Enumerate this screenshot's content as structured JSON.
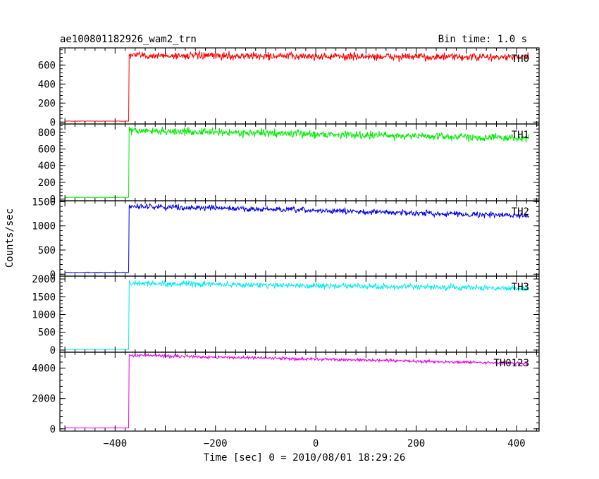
{
  "chart_data": {
    "type": "line",
    "title": "ae100801182926_wam2_trn",
    "subtitle": "Bin time: 1.0 s",
    "xlabel": "Time [sec] 0 = 2010/08/01 18:29:26",
    "ylabel": "Counts/sec",
    "xlim": [
      -510,
      445
    ],
    "x_ticks": [
      "−400",
      "−200",
      "0",
      "200",
      "400"
    ],
    "x_tick_values": [
      -400,
      -200,
      0,
      200,
      400
    ],
    "grid": false,
    "burst_time": -372,
    "data_end": 425,
    "panels": [
      {
        "name": "TH0",
        "color": "#ff0000",
        "ylim": [
          -20,
          780
        ],
        "yticks": [
          0,
          200,
          400,
          600
        ],
        "ytick_labels": [
          "0",
          "200",
          "400",
          "600"
        ],
        "background": 10,
        "level_start": 700,
        "level_end": 680,
        "noise": 28
      },
      {
        "name": "TH1",
        "color": "#00ee00",
        "ylim": [
          -20,
          900
        ],
        "yticks": [
          0,
          200,
          400,
          600,
          800
        ],
        "ytick_labels": [
          "0",
          "200",
          "400",
          "600",
          "800"
        ],
        "background": 20,
        "level_start": 820,
        "level_end": 730,
        "noise": 32
      },
      {
        "name": "TH2",
        "color": "#0000ee",
        "ylim": [
          -40,
          1520
        ],
        "yticks": [
          0,
          500,
          1000,
          1500
        ],
        "ytick_labels": [
          "0",
          "500",
          "1000",
          "1500"
        ],
        "background": 35,
        "level_start": 1410,
        "level_end": 1210,
        "noise": 40
      },
      {
        "name": "TH3",
        "color": "#00eeee",
        "ylim": [
          -60,
          2080
        ],
        "yticks": [
          0,
          500,
          1000,
          1500,
          2000
        ],
        "ytick_labels": [
          "0",
          "500",
          "1000",
          "1500",
          "2000"
        ],
        "background": 15,
        "level_start": 1880,
        "level_end": 1730,
        "noise": 55
      },
      {
        "name": "TH0123",
        "color": "#ee00ee",
        "ylim": [
          -150,
          5050
        ],
        "yticks": [
          0,
          2000,
          4000
        ],
        "ytick_labels": [
          "0",
          "2000",
          "4000"
        ],
        "background": 60,
        "level_start": 4850,
        "level_end": 4300,
        "noise": 70
      }
    ]
  }
}
